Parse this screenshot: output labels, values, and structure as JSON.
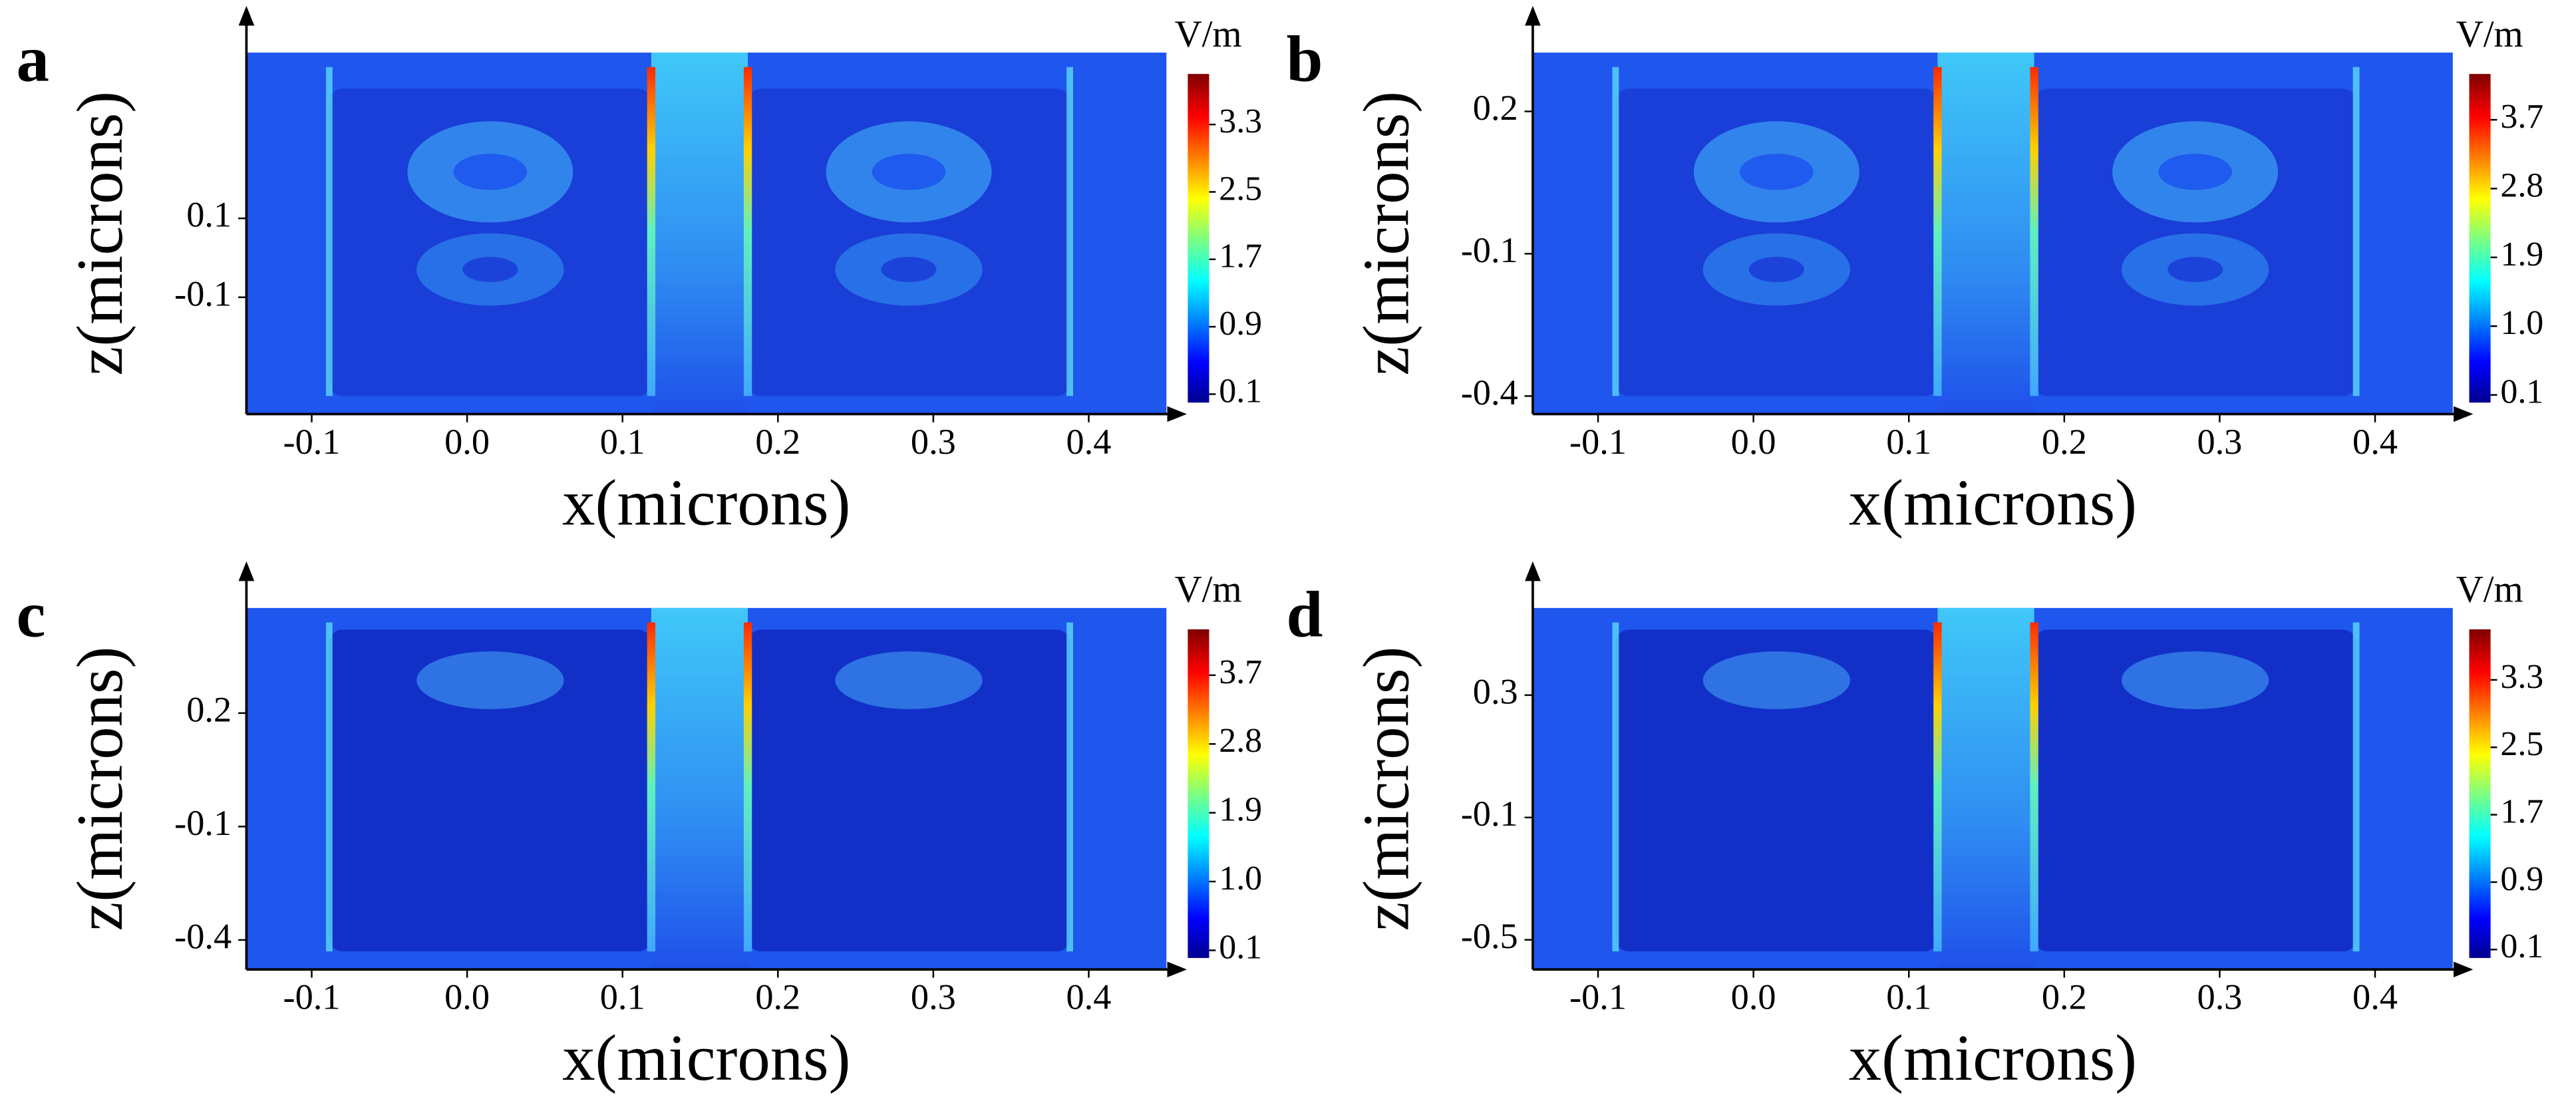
{
  "chart_data": [
    {
      "type": "heatmap",
      "panel_label": "a",
      "xlabel": "x(microns)",
      "ylabel": "z(microns)",
      "colormap": "jet",
      "xlim": [
        -0.142,
        0.45
      ],
      "xticks": [
        -0.1,
        {
          "value": 0,
          "label": "0.0"
        },
        0.1,
        0.2,
        0.3,
        0.4
      ],
      "ylim": [
        -0.396,
        0.52
      ],
      "yticks": [
        -0.1,
        0.1
      ],
      "colorbar": {
        "label": "V/m",
        "lim": [
          0,
          3.9
        ],
        "ticks": [
          0.1,
          0.9,
          1.7,
          2.5,
          3.3
        ]
      }
    },
    {
      "type": "heatmap",
      "panel_label": "b",
      "xlabel": "x(microns)",
      "ylabel": "z(microns)",
      "colormap": "jet",
      "xlim": [
        -0.142,
        0.45
      ],
      "xticks": [
        -0.1,
        {
          "value": 0,
          "label": "0.0"
        },
        0.1,
        0.2,
        0.3,
        0.4
      ],
      "ylim": [
        -0.438,
        0.324
      ],
      "yticks": [
        -0.4,
        -0.1,
        0.2
      ],
      "colorbar": {
        "label": "V/m",
        "lim": [
          0,
          4.3
        ],
        "ticks": [
          0.1,
          {
            "value": 1,
            "label": "1.0"
          },
          1.9,
          2.8,
          3.7
        ]
      }
    },
    {
      "type": "heatmap",
      "panel_label": "c",
      "xlabel": "x(microns)",
      "ylabel": "z(microns)",
      "colormap": "jet",
      "xlim": [
        -0.142,
        0.45
      ],
      "xticks": [
        -0.1,
        {
          "value": 0,
          "label": "0.0"
        },
        0.1,
        0.2,
        0.3,
        0.4
      ],
      "ylim": [
        -0.478,
        0.478
      ],
      "yticks": [
        -0.4,
        -0.1,
        0.2
      ],
      "colorbar": {
        "label": "V/m",
        "lim": [
          0,
          4.3
        ],
        "ticks": [
          0.1,
          {
            "value": 1,
            "label": "1.0"
          },
          1.9,
          2.8,
          3.7
        ]
      }
    },
    {
      "type": "heatmap",
      "panel_label": "d",
      "xlabel": "x(microns)",
      "ylabel": "z(microns)",
      "colormap": "jet",
      "xlim": [
        -0.142,
        0.45
      ],
      "xticks": [
        -0.1,
        {
          "value": 0,
          "label": "0.0"
        },
        0.1,
        0.2,
        0.3,
        0.4
      ],
      "ylim": [
        -0.597,
        0.585
      ],
      "yticks": [
        -0.5,
        -0.1,
        0.3
      ],
      "colorbar": {
        "label": "V/m",
        "lim": [
          0,
          3.9
        ],
        "ticks": [
          0.1,
          0.9,
          1.7,
          2.5,
          3.3
        ]
      }
    }
  ]
}
